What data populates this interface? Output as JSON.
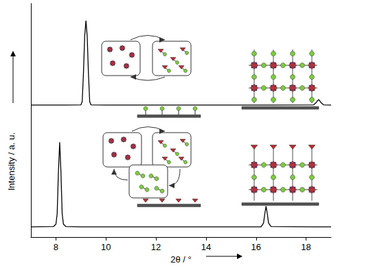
{
  "chart_data": {
    "type": "line",
    "x_label": "2θ / °",
    "y_label": "Intensity / a. u.",
    "x": [
      7,
      7.9,
      8.0,
      8.05,
      8.1,
      8.15,
      8.2,
      8.25,
      8.3,
      8.4,
      9.0,
      9.05,
      9.1,
      9.15,
      9.2,
      9.25,
      9.3,
      9.35,
      9.4,
      10,
      16.2,
      16.3,
      16.35,
      16.4,
      16.45,
      16.5,
      16.6,
      18.3,
      18.4,
      18.45,
      18.5,
      18.55,
      18.6,
      18.7,
      19
    ],
    "series": [
      {
        "color": "#000000",
        "values": [
          4.4,
          4.5,
          5.5,
          10,
          28,
          40.6,
          28,
          10,
          5.5,
          4.5,
          4.4,
          4.4,
          4.4,
          4.4,
          4.4,
          4.4,
          4.4,
          4.4,
          4.4,
          4.4,
          4.4,
          6,
          10,
          13.2,
          10,
          6,
          4.5,
          4.4,
          4.4,
          4.4,
          4.4,
          4.4,
          4.4,
          4.4,
          4.4
        ]
      },
      {
        "color": "#000000",
        "values": [
          56.5,
          56.5,
          56.5,
          56.5,
          56.5,
          56.5,
          56.5,
          56.5,
          56.5,
          56.5,
          56.6,
          58,
          70,
          86,
          92.6,
          86,
          70,
          58,
          56.6,
          56.5,
          56.5,
          56.5,
          56.5,
          56.5,
          56.5,
          56.5,
          56.5,
          56.6,
          57.5,
          58.3,
          58.8,
          58.3,
          57.5,
          56.6,
          56.5
        ]
      }
    ],
    "xlim": [
      7,
      19
    ],
    "xticks": [
      8,
      10,
      12,
      14,
      16,
      18
    ],
    "ylim": [
      0,
      100
    ],
    "yticks": [],
    "grid": false,
    "tick_labels": "x"
  }
}
